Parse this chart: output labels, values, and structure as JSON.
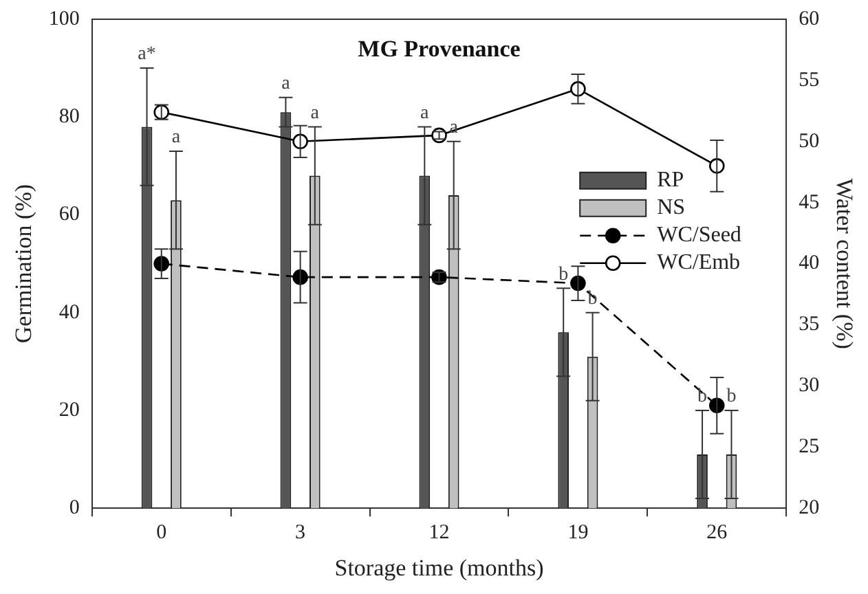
{
  "chart_data": {
    "type": "bar",
    "title": "MG Provenance",
    "xlabel": "Storage time (months)",
    "ylabel": "Germination (%)",
    "y2label": "Water content (%)",
    "categories": [
      "0",
      "3",
      "12",
      "19",
      "26"
    ],
    "series": [
      {
        "name": "RP",
        "color": "#555555",
        "values": [
          78,
          81,
          68,
          36,
          11
        ],
        "errors": [
          12,
          3,
          10,
          9,
          9
        ]
      },
      {
        "name": "NS",
        "color": "#c0c0c0",
        "values": [
          63,
          68,
          64,
          31,
          11
        ],
        "errors": [
          10,
          10,
          11,
          9,
          9
        ]
      },
      {
        "name": "WC/Seed",
        "type": "line",
        "axis": "y2",
        "color": "#000000",
        "line_style": "dashed",
        "values": [
          40.0,
          38.9,
          38.9,
          38.4,
          28.4
        ],
        "errors": [
          1.2,
          2.1,
          0.4,
          1.4,
          2.3
        ]
      },
      {
        "name": "WC/Emb",
        "type": "line",
        "axis": "y2",
        "color": "#000000",
        "line_style": "solid",
        "values": [
          52.4,
          50.0,
          50.5,
          54.3,
          48.0
        ],
        "errors": [
          0.6,
          1.3,
          0.3,
          1.2,
          2.1
        ]
      }
    ],
    "ylim": [
      0,
      100
    ],
    "yticks": [
      0,
      20,
      40,
      60,
      80,
      100
    ],
    "y2lim": [
      20,
      60
    ],
    "y2ticks": [
      20,
      25,
      30,
      35,
      40,
      45,
      50,
      55,
      60
    ],
    "marker": "circle",
    "legend": "right",
    "grid": false,
    "annotations": [
      "a*",
      "a",
      "a",
      "a",
      "a",
      "a",
      "b",
      "b",
      "b",
      "b"
    ]
  }
}
